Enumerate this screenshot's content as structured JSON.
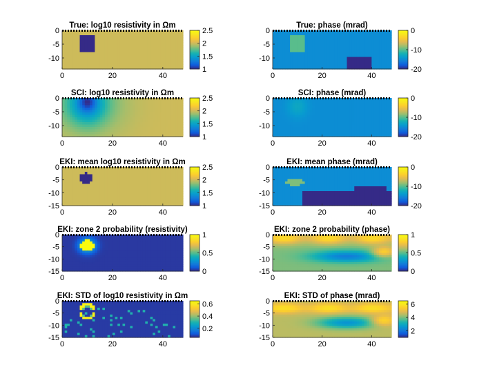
{
  "figure": {
    "background": "#ffffff"
  },
  "chart_data": [
    {
      "type": "heatmap",
      "title": "True: log10 resistivity in Ωm",
      "xlim": [
        0,
        48
      ],
      "ylim": [
        -14,
        0
      ],
      "xticks": [
        0,
        20,
        40
      ],
      "yticks": [
        0,
        -5,
        -10
      ],
      "colorbar": {
        "min": 1,
        "max": 2.5,
        "ticks": [
          1,
          1.5,
          2,
          2.5
        ],
        "labels": [
          "1",
          "1.5",
          "2",
          "2.5"
        ]
      },
      "background_value": 2.0,
      "features": [
        {
          "shape": "rect",
          "x": [
            7,
            13
          ],
          "y": [
            -2,
            -8
          ],
          "value": 1.0
        }
      ]
    },
    {
      "type": "heatmap",
      "title": "True: phase (mrad)",
      "xlim": [
        0,
        48
      ],
      "ylim": [
        -14,
        0
      ],
      "xticks": [
        0,
        20,
        40
      ],
      "yticks": [
        0,
        -5,
        -10
      ],
      "colorbar": {
        "min": -20,
        "max": 0,
        "ticks": [
          0,
          -10,
          -20
        ],
        "labels": [
          "0",
          "-10",
          "-20"
        ]
      },
      "background_value": -15,
      "features": [
        {
          "shape": "rect",
          "x": [
            7,
            13
          ],
          "y": [
            -2,
            -8
          ],
          "value": -10
        },
        {
          "shape": "rect",
          "x": [
            30,
            40
          ],
          "y": [
            -10,
            -14
          ],
          "value": -20
        }
      ]
    },
    {
      "type": "heatmap",
      "title": "SCI: log10 resistivity in Ωm",
      "xlim": [
        0,
        48
      ],
      "ylim": [
        -14,
        0
      ],
      "xticks": [
        0,
        20,
        40
      ],
      "yticks": [
        0,
        -5,
        -10
      ],
      "colorbar": {
        "min": 1,
        "max": 2.5,
        "ticks": [
          1,
          1.5,
          2,
          2.5
        ],
        "labels": [
          "1",
          "1.5",
          "2",
          "2.5"
        ]
      },
      "background_value": 2.0,
      "features": [
        {
          "shape": "blob",
          "x": 10,
          "y": -2,
          "rx": 18,
          "ry": 14,
          "value": 1.7
        },
        {
          "shape": "blob",
          "x": 10,
          "y": -2,
          "rx": 8,
          "ry": 8,
          "value": 1.3
        },
        {
          "shape": "blob",
          "x": 10,
          "y": -1.5,
          "rx": 3.5,
          "ry": 3.5,
          "value": 1.0
        }
      ]
    },
    {
      "type": "heatmap",
      "title": "SCI: phase (mrad)",
      "xlim": [
        0,
        48
      ],
      "ylim": [
        -14,
        0
      ],
      "xticks": [
        0,
        20,
        40
      ],
      "yticks": [
        0,
        -5,
        -10
      ],
      "colorbar": {
        "min": -20,
        "max": 0,
        "ticks": [
          0,
          -10,
          -20
        ],
        "labels": [
          "0",
          "-10",
          "-20"
        ]
      },
      "background_value": -15,
      "features": [
        {
          "shape": "blob",
          "x": 10,
          "y": -3,
          "rx": 5,
          "ry": 5,
          "value": -13
        }
      ]
    },
    {
      "type": "heatmap",
      "title": "EKI: mean log10 resistivity in  Ωm",
      "xlim": [
        0,
        48
      ],
      "ylim": [
        -15,
        0
      ],
      "xticks": [
        0,
        20,
        40
      ],
      "yticks": [
        0,
        -5,
        -10,
        -15
      ],
      "colorbar": {
        "min": 1,
        "max": 2.5,
        "ticks": [
          1,
          1.5,
          2,
          2.5
        ],
        "labels": [
          "1",
          "1.5",
          "2",
          "2.5"
        ]
      },
      "background_value": 2.0,
      "features": [
        {
          "shape": "blob",
          "x": 9.5,
          "y": -4.5,
          "rx": 2.6,
          "ry": 2.2,
          "value": 1.0,
          "hard": true
        }
      ]
    },
    {
      "type": "heatmap",
      "title": "EKI: mean phase (mrad)",
      "xlim": [
        0,
        48
      ],
      "ylim": [
        -15,
        0
      ],
      "xticks": [
        0,
        20,
        40
      ],
      "yticks": [
        0,
        -5,
        -10,
        -15
      ],
      "colorbar": {
        "min": -20,
        "max": 0,
        "ticks": [
          0,
          -10,
          -20
        ],
        "labels": [
          "0",
          "-10",
          "-20"
        ]
      },
      "background_value": -15,
      "features": [
        {
          "shape": "blob",
          "x": 9,
          "y": -6,
          "rx": 4,
          "ry": 1.3,
          "value": -9,
          "hard": true
        },
        {
          "shape": "rect",
          "x": [
            12,
            48
          ],
          "y": [
            -9,
            -15
          ],
          "value": -20
        },
        {
          "shape": "rect",
          "x": [
            33,
            46
          ],
          "y": [
            -7.5,
            -9
          ],
          "value": -20
        }
      ]
    },
    {
      "type": "heatmap",
      "title": "EKI: zone 2 probability (resistivity)",
      "xlim": [
        0,
        48
      ],
      "ylim": [
        -15,
        0
      ],
      "xticks": [
        0,
        20,
        40
      ],
      "yticks": [
        0,
        -5,
        -10,
        -15
      ],
      "colorbar": {
        "min": 0,
        "max": 1,
        "ticks": [
          0,
          0.5,
          1
        ],
        "labels": [
          "0",
          "0.5",
          "1"
        ]
      },
      "background_value": 0.03,
      "features": [
        {
          "shape": "blob",
          "x": 10,
          "y": -4.5,
          "rx": 4,
          "ry": 3.5,
          "value": 0.5
        },
        {
          "shape": "blob",
          "x": 10,
          "y": -4.5,
          "rx": 2.8,
          "ry": 2.4,
          "value": 1.0,
          "hard": true
        }
      ]
    },
    {
      "type": "heatmap",
      "title": "EKI: zone 2 probability (phase)",
      "xlim": [
        0,
        48
      ],
      "ylim": [
        -15,
        0
      ],
      "xticks": [
        0,
        20,
        40
      ],
      "yticks": [
        0,
        -5,
        -10,
        -15
      ],
      "colorbar": {
        "min": 0,
        "max": 1,
        "ticks": [
          0,
          0.5,
          1
        ],
        "labels": [
          "0",
          "0.5",
          "1"
        ]
      },
      "background_value": 0.55,
      "features": [
        {
          "shape": "band",
          "y": -1.5,
          "ry": 2.5,
          "value": 0.85
        },
        {
          "shape": "blob",
          "x": 30,
          "y": -9,
          "rx": 18,
          "ry": 3,
          "value": 0.2
        },
        {
          "shape": "blob",
          "x": 45,
          "y": -7,
          "rx": 6,
          "ry": 3,
          "value": 0.8
        }
      ]
    },
    {
      "type": "heatmap",
      "title": "EKI: STD of log10 resistivity in  Ωm",
      "xlim": [
        0,
        48
      ],
      "ylim": [
        -15,
        0
      ],
      "xticks": [
        0,
        20,
        40
      ],
      "yticks": [
        0,
        -5,
        -10,
        -15
      ],
      "colorbar": {
        "min": 0.05,
        "max": 0.65,
        "ticks": [
          0.2,
          0.4,
          0.6
        ],
        "labels": [
          "0.2",
          "0.4",
          "0.6"
        ]
      },
      "background_value": 0.07,
      "features": [
        {
          "shape": "ring",
          "x": 10,
          "y": -4.5,
          "r": 3,
          "width": 0.9,
          "value": 0.62
        },
        {
          "shape": "ring",
          "x": 10,
          "y": -4.5,
          "r": 2.2,
          "width": 0.6,
          "value": 0.35
        },
        {
          "shape": "noise",
          "x": [
            0,
            45
          ],
          "y": [
            -3,
            -15
          ],
          "value": 0.3,
          "density": 0.08
        }
      ]
    },
    {
      "type": "heatmap",
      "title": "EKI: STD of phase (mrad)",
      "xlim": [
        0,
        48
      ],
      "ylim": [
        -15,
        0
      ],
      "xticks": [
        0,
        20,
        40
      ],
      "yticks": [
        0,
        -5,
        -10,
        -15
      ],
      "colorbar": {
        "min": 1,
        "max": 6.5,
        "ticks": [
          2,
          4,
          6
        ],
        "labels": [
          "2",
          "4",
          "6"
        ]
      },
      "background_value": 4.5,
      "features": [
        {
          "shape": "band",
          "y": -3,
          "ry": 2,
          "value": 5.8
        },
        {
          "shape": "blob",
          "x": 30,
          "y": -9,
          "rx": 15,
          "ry": 3,
          "value": 2.5
        },
        {
          "shape": "blob",
          "x": 45,
          "y": -8,
          "rx": 6,
          "ry": 3,
          "value": 5.5
        }
      ]
    }
  ]
}
